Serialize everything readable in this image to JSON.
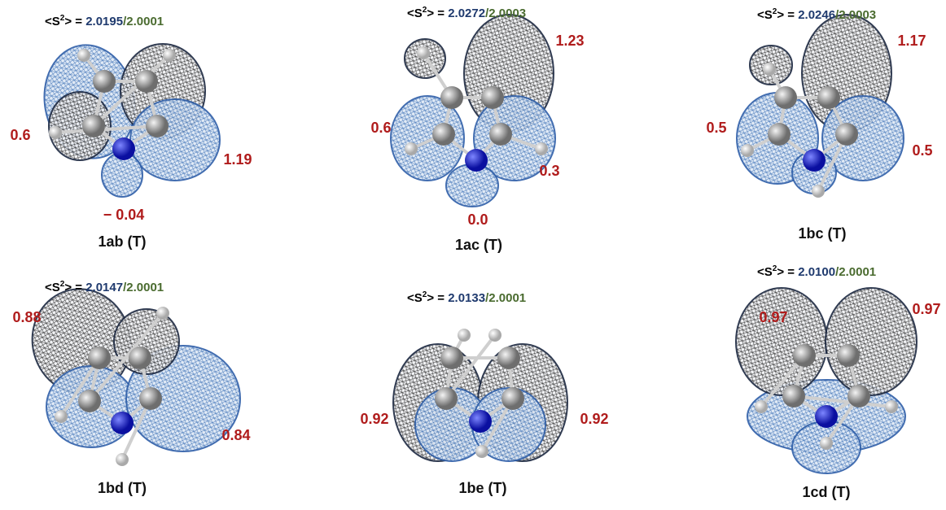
{
  "panels": [
    {
      "name": "1ab (T)",
      "s2": {
        "open": "<S",
        "sup": "2",
        "close": "> = ",
        "value_1": "2.0195",
        "separator": "/",
        "value_2": "2.0001"
      },
      "spin_labels": [
        "0.6",
        "1.19",
        "− 0.04"
      ]
    },
    {
      "name": "1ac (T)",
      "s2": {
        "open": "<S",
        "sup": "2",
        "close": "> = ",
        "value_1": "2.0272",
        "separator": "/",
        "value_2": "2.0003"
      },
      "spin_labels": [
        "1.23",
        "0.6",
        "0.3",
        "0.0"
      ]
    },
    {
      "name": "1bc (T)",
      "s2": {
        "open": "<S",
        "sup": "2",
        "close": "> = ",
        "value_1": "2.0246",
        "separator": "/",
        "value_2": "2.0003"
      },
      "spin_labels": [
        "1.17",
        "0.5",
        "0.5"
      ]
    },
    {
      "name": "1bd (T)",
      "s2": {
        "open": "<S",
        "sup": "2",
        "close": "> = ",
        "value_1": "2.0147",
        "separator": "/",
        "value_2": "2.0001"
      },
      "spin_labels": [
        "0.88",
        "0.84"
      ]
    },
    {
      "name": "1be (T)",
      "s2": {
        "open": "<S",
        "sup": "2",
        "close": "> = ",
        "value_1": "2.0133",
        "separator": "/",
        "value_2": "2.0001"
      },
      "spin_labels": [
        "0.92",
        "0.92"
      ]
    },
    {
      "name": "1cd (T)",
      "s2": {
        "open": "<S",
        "sup": "2",
        "close": "> = ",
        "value_1": "2.0100",
        "separator": "/",
        "value_2": "2.0001"
      },
      "spin_labels": [
        "0.97",
        "0.97"
      ]
    }
  ]
}
